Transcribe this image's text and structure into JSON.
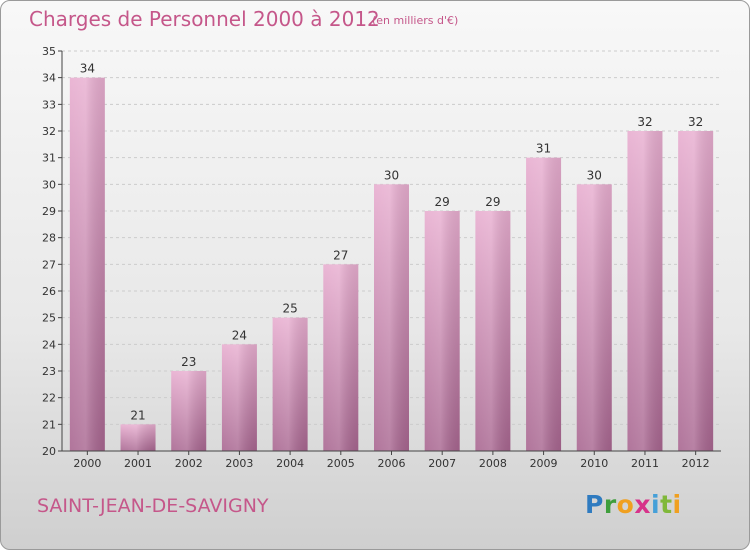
{
  "header": {
    "title": "Charges de Personnel 2000 à 2012",
    "subtitle": "(en milliers d'€)"
  },
  "footer": {
    "commune": "SAINT-JEAN-DE-SAVIGNY",
    "logo_letters": [
      "P",
      "r",
      "o",
      "x",
      "i",
      "t",
      "i"
    ],
    "logo_colors": [
      "#2f7bc0",
      "#3f9e3c",
      "#f0a020",
      "#d7338a",
      "#46a0d8",
      "#80b83a",
      "#f0a020"
    ]
  },
  "colors": {
    "bar_top": "#e8aed0",
    "bar_bottom": "#a86690",
    "text": "#c5578a",
    "axis": "#444444",
    "grid": "#cccccc"
  },
  "chart_data": {
    "type": "bar",
    "categories": [
      "2000",
      "2001",
      "2002",
      "2003",
      "2004",
      "2005",
      "2006",
      "2007",
      "2008",
      "2009",
      "2010",
      "2011",
      "2012"
    ],
    "values": [
      34,
      21,
      23,
      24,
      25,
      27,
      30,
      29,
      29,
      31,
      30,
      32,
      32
    ],
    "ylim": [
      20,
      35
    ],
    "yticks": [
      20,
      21,
      22,
      23,
      24,
      25,
      26,
      27,
      28,
      29,
      30,
      31,
      32,
      33,
      34,
      35
    ],
    "grid": true,
    "xlabel": "",
    "ylabel": ""
  }
}
